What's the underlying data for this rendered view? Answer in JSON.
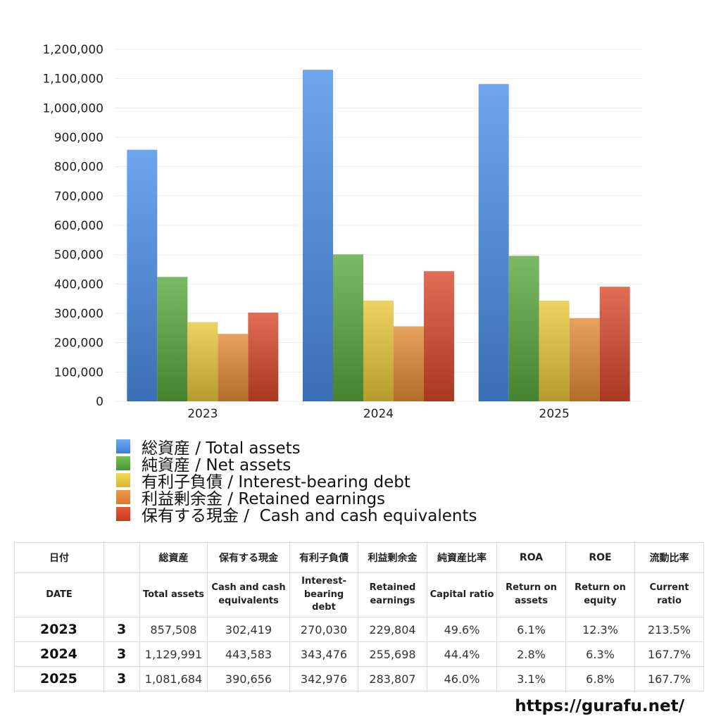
{
  "chart_data": {
    "type": "bar",
    "categories": [
      "2023",
      "2024",
      "2025"
    ],
    "series": [
      {
        "name": "総資産 / Total assets",
        "color": "#4a8ee8",
        "values": [
          857508,
          1129991,
          1081684
        ]
      },
      {
        "name": "純資産 / Net assets",
        "color": "#5aa83f",
        "values": [
          424000,
          501000,
          496000
        ]
      },
      {
        "name": "有利子負債 / Interest-bearing debt",
        "color": "#e8c83a",
        "values": [
          270030,
          343476,
          342976
        ]
      },
      {
        "name": "利益剰余金 / Retained earnings",
        "color": "#e48a38",
        "values": [
          229804,
          255698,
          283807
        ]
      },
      {
        "name": "保有する現金 /  Cash and cash equivalents",
        "color": "#d9482a",
        "values": [
          302419,
          443583,
          390656
        ]
      }
    ],
    "ylim": [
      0,
      1200000
    ],
    "yticks": [
      "0",
      "100,000",
      "200,000",
      "300,000",
      "400,000",
      "500,000",
      "600,000",
      "700,000",
      "800,000",
      "900,000",
      "1,000,000",
      "1,100,000",
      "1,200,000"
    ],
    "grid": true,
    "legend_position": "bottom-left"
  },
  "table": {
    "header_jp": [
      "日付",
      "",
      "総資産",
      "保有する現金",
      "有利子負債",
      "利益剰余金",
      "純資産比率",
      "ROA",
      "ROE",
      "流動比率"
    ],
    "header_en": [
      "DATE",
      "",
      "Total assets",
      "Cash and cash equivalents",
      "Interest-bearing debt",
      "Retained earnings",
      "Capital ratio",
      "Return on assets",
      "Return on equity",
      "Current ratio"
    ],
    "rows": [
      [
        "2023",
        "3",
        "857,508",
        "302,419",
        "270,030",
        "229,804",
        "49.6%",
        "6.1%",
        "12.3%",
        "213.5%"
      ],
      [
        "2024",
        "3",
        "1,129,991",
        "443,583",
        "343,476",
        "255,698",
        "44.4%",
        "2.8%",
        "6.3%",
        "167.7%"
      ],
      [
        "2025",
        "3",
        "1,081,684",
        "390,656",
        "342,976",
        "283,807",
        "46.0%",
        "3.1%",
        "6.8%",
        "167.7%"
      ]
    ]
  },
  "watermark": "https://gurafu.net/"
}
